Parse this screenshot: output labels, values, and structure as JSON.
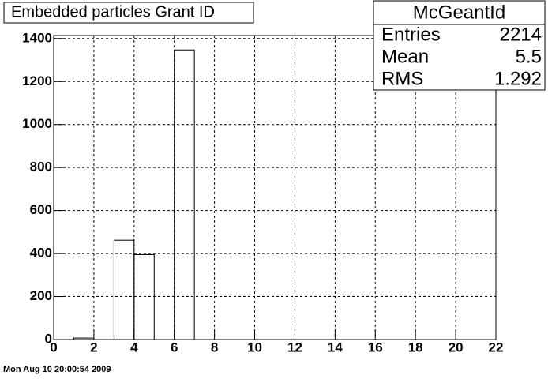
{
  "chart_data": {
    "type": "histogram",
    "title": "Embedded particles Grant ID",
    "bins": [
      0,
      1,
      2,
      3,
      4,
      5,
      6,
      7,
      8,
      9,
      10,
      11,
      12,
      13,
      14,
      15,
      16,
      17,
      18,
      19,
      20,
      21,
      22
    ],
    "values": [
      0,
      7,
      0,
      462,
      395,
      0,
      1347,
      0,
      0,
      0,
      0,
      0,
      0,
      0,
      0,
      0,
      0,
      0,
      0,
      0,
      0,
      0
    ],
    "color": "#000000",
    "xlim": [
      0,
      22
    ],
    "xticks": [
      0,
      2,
      4,
      6,
      8,
      10,
      12,
      14,
      16,
      18,
      20,
      22
    ],
    "ylim": [
      0,
      1414
    ],
    "yticks": [
      0,
      200,
      400,
      600,
      800,
      1000,
      1200,
      1400
    ],
    "grid": true,
    "stats": {
      "name": "McGeantId",
      "rows": [
        {
          "label": "Entries",
          "value": 2214
        },
        {
          "label": "Mean",
          "value": 5.5
        },
        {
          "label": "RMS",
          "value": 1.292
        }
      ]
    },
    "timestamp": "Mon Aug 10 20:00:54 2009"
  }
}
